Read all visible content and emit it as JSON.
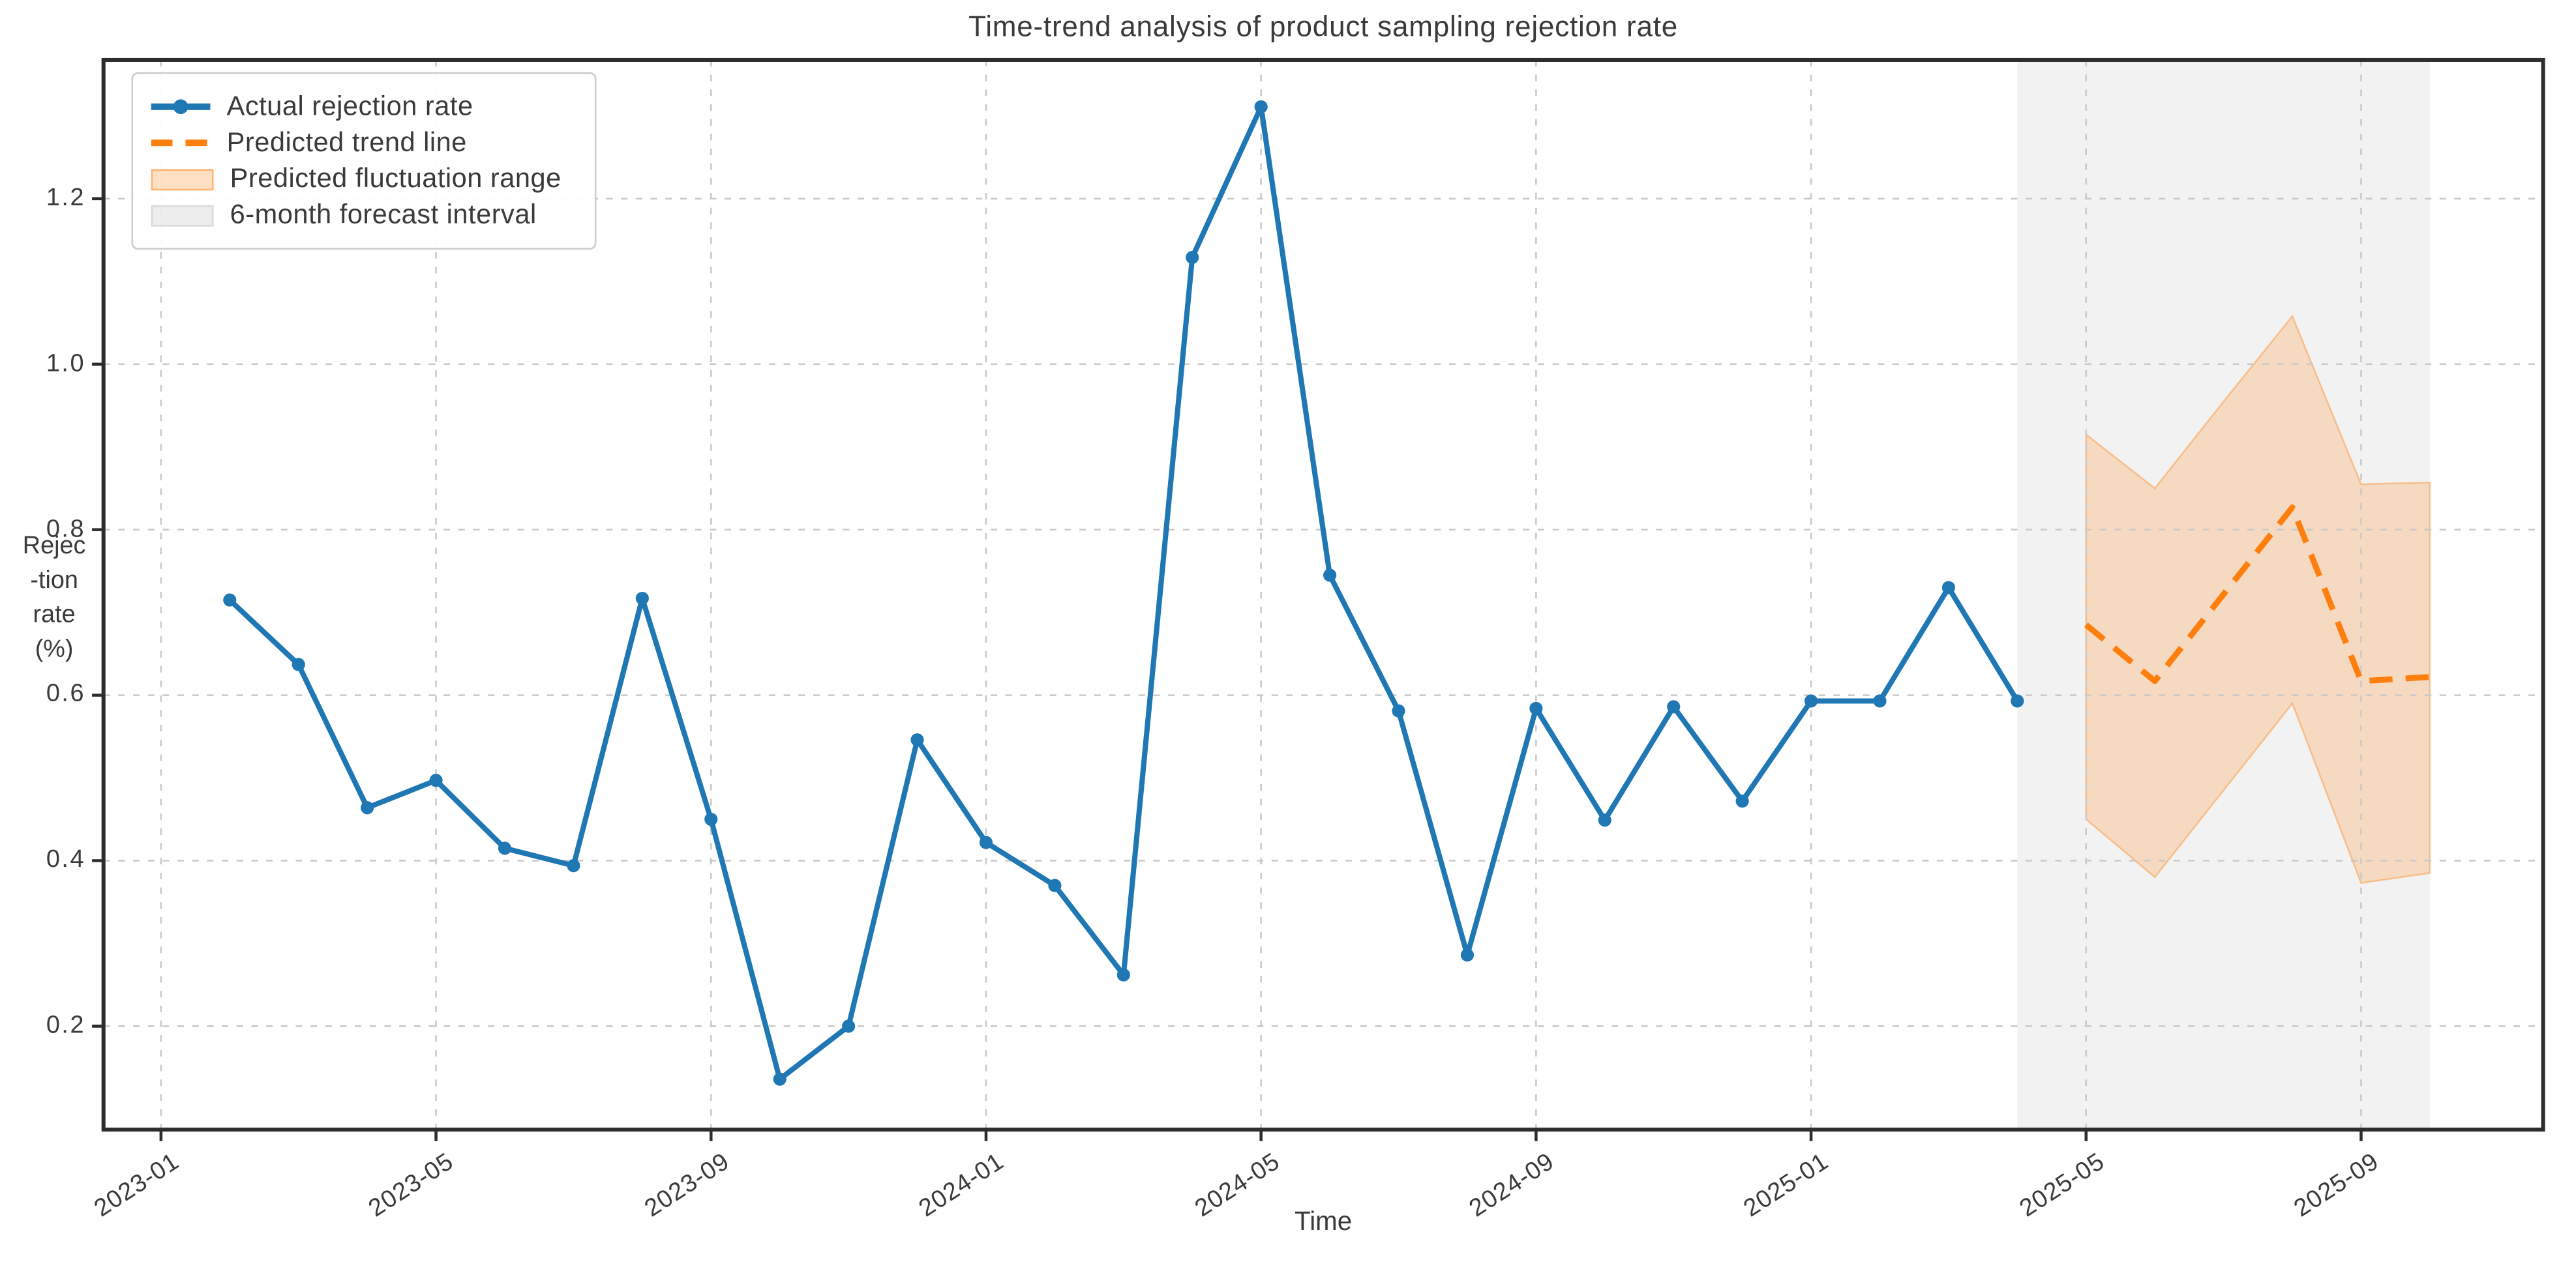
{
  "title": "Time-trend analysis of product sampling rejection rate",
  "axes": {
    "x_label": "Time",
    "y_label_lines": [
      "Rejec",
      "-tion",
      "rate",
      "(%)"
    ],
    "x_tick_labels": [
      "2023-01",
      "2023-05",
      "2023-09",
      "2024-01",
      "2024-05",
      "2024-09",
      "2025-01",
      "2025-05",
      "2025-09"
    ],
    "y_tick_labels": [
      "0.2",
      "0.4",
      "0.6",
      "0.8",
      "1.0",
      "1.2"
    ]
  },
  "legend": {
    "items": [
      {
        "label": "Actual rejection rate"
      },
      {
        "label": "Predicted trend line"
      },
      {
        "label": "Predicted fluctuation range"
      },
      {
        "label": "6-month forecast interval"
      }
    ]
  },
  "colors": {
    "actual_line": "#1f77b4",
    "predicted_line": "#ff7f0e",
    "fluctuation_fill": "rgba(255,127,14,0.22)",
    "fluctuation_edge": "rgba(255,127,14,0.38)",
    "forecast_interval_fill": "rgba(128,128,128,0.10)",
    "gridline": "#c9c9c9",
    "spine": "#2d2d2d",
    "text": "#3a3a3a"
  },
  "chart_data": {
    "type": "line",
    "title": "Time-trend analysis of product sampling rejection rate",
    "xlabel": "Time",
    "ylabel": "Rejection rate (%)",
    "grid": true,
    "legend_position": "upper left",
    "x_tick_labels": [
      "2023-01",
      "2023-05",
      "2023-09",
      "2024-01",
      "2024-05",
      "2024-09",
      "2025-01",
      "2025-05",
      "2025-09"
    ],
    "y_ticks": [
      0.2,
      0.4,
      0.6,
      0.8,
      1.0,
      1.2
    ],
    "ylim": [
      0.075,
      1.368
    ],
    "series": [
      {
        "name": "Actual rejection rate",
        "type": "line+markers",
        "x": [
          "2023-02",
          "2023-03",
          "2023-04",
          "2023-05",
          "2023-06",
          "2023-07",
          "2023-08",
          "2023-09",
          "2023-10",
          "2023-11",
          "2023-12",
          "2024-01",
          "2024-02",
          "2024-03",
          "2024-04",
          "2024-05",
          "2024-06",
          "2024-07",
          "2024-08",
          "2024-09",
          "2024-10",
          "2024-11",
          "2024-12",
          "2025-01",
          "2025-02",
          "2025-03",
          "2025-04"
        ],
        "values": [
          0.715,
          0.637,
          0.464,
          0.497,
          0.415,
          0.394,
          0.717,
          0.45,
          0.136,
          0.2,
          0.546,
          0.422,
          0.37,
          0.262,
          1.129,
          1.311,
          0.745,
          0.581,
          0.286,
          0.584,
          0.449,
          0.586,
          0.472,
          0.593,
          0.593,
          0.73,
          0.593
        ]
      },
      {
        "name": "Predicted trend line",
        "type": "dashed-line",
        "x": [
          "2025-05",
          "2025-06",
          "2025-07",
          "2025-08",
          "2025-09",
          "2025-10"
        ],
        "values": [
          0.685,
          0.617,
          0.722,
          0.827,
          0.617,
          0.622
        ]
      },
      {
        "name": "Predicted fluctuation range",
        "type": "band",
        "x": [
          "2025-05",
          "2025-06",
          "2025-07",
          "2025-08",
          "2025-09",
          "2025-10"
        ],
        "upper": [
          0.915,
          0.85,
          0.955,
          1.058,
          0.855,
          0.857
        ],
        "lower": [
          0.45,
          0.38,
          0.485,
          0.59,
          0.373,
          0.385
        ]
      },
      {
        "name": "6-month forecast interval",
        "type": "vertical-span",
        "x_start": "2025-04",
        "x_end": "2025-10"
      }
    ]
  }
}
